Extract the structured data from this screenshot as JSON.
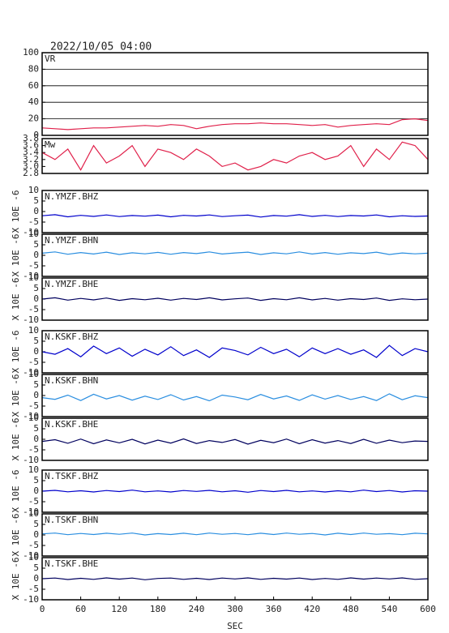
{
  "chart_data": [
    {
      "type": "line",
      "title": "2022/10/05 04:00",
      "label": "VR",
      "color": "#e0204a",
      "grid": true,
      "ylim": [
        0,
        100
      ],
      "yticks": [
        0,
        20,
        40,
        60,
        80,
        100
      ],
      "xlim": [
        0,
        600
      ],
      "x": [
        0,
        20,
        40,
        60,
        80,
        100,
        120,
        140,
        160,
        180,
        200,
        220,
        240,
        260,
        280,
        300,
        320,
        340,
        360,
        380,
        400,
        420,
        440,
        460,
        480,
        500,
        520,
        540,
        560,
        580,
        600
      ],
      "values": [
        9,
        8,
        7,
        8,
        9,
        9,
        10,
        11,
        12,
        11,
        13,
        12,
        8,
        11,
        13,
        14,
        14,
        15,
        14,
        14,
        13,
        12,
        13,
        10,
        12,
        13,
        14,
        13,
        19,
        20,
        18
      ]
    },
    {
      "type": "line",
      "label": "Mw",
      "color": "#e0204a",
      "ylim": [
        2.8,
        3.8
      ],
      "yticks": [
        {
          "value": 2.8,
          "label": "2.8"
        },
        {
          "value": 3,
          "label": "3.0"
        },
        3.2,
        3.4,
        3.6,
        3.8
      ],
      "xlim": [
        0,
        600
      ],
      "x": [
        0,
        20,
        40,
        60,
        80,
        100,
        120,
        140,
        160,
        180,
        200,
        220,
        240,
        260,
        280,
        300,
        320,
        340,
        360,
        380,
        400,
        420,
        440,
        460,
        480,
        500,
        520,
        540,
        560,
        580,
        600
      ],
      "values": [
        3.4,
        3.2,
        3.5,
        2.9,
        3.6,
        3.1,
        3.3,
        3.6,
        3.0,
        3.5,
        3.4,
        3.2,
        3.5,
        3.3,
        3.0,
        3.1,
        2.9,
        3.0,
        3.2,
        3.1,
        3.3,
        3.4,
        3.2,
        3.3,
        3.6,
        3.0,
        3.5,
        3.2,
        3.7,
        3.6,
        3.2
      ]
    },
    {
      "type": "line",
      "label": "N.YMZF.BHZ",
      "ylabel": "X 10E -6",
      "color": "#0000cc",
      "ylim": [
        -10,
        10
      ],
      "yticks": [
        -10,
        -5,
        0,
        5,
        10
      ],
      "xlim": [
        0,
        600
      ],
      "x": [
        0,
        20,
        40,
        60,
        80,
        100,
        120,
        140,
        160,
        180,
        200,
        220,
        240,
        260,
        280,
        300,
        320,
        340,
        360,
        380,
        400,
        420,
        440,
        460,
        480,
        500,
        520,
        540,
        560,
        580,
        600
      ],
      "values": [
        -2,
        -1.5,
        -2.5,
        -1.8,
        -2.3,
        -1.6,
        -2.4,
        -1.9,
        -2.2,
        -1.7,
        -2.5,
        -1.8,
        -2.1,
        -1.6,
        -2.4,
        -2,
        -1.7,
        -2.6,
        -1.9,
        -2.2,
        -1.5,
        -2.3,
        -1.8,
        -2.4,
        -1.9,
        -2.1,
        -1.6,
        -2.5,
        -2,
        -2.3,
        -2.1
      ]
    },
    {
      "type": "line",
      "label": "N.YMZF.BHN",
      "ylabel": "X 10E -6",
      "color": "#2a8ee0",
      "ylim": [
        -10,
        10
      ],
      "yticks": [
        -10,
        -5,
        0,
        5,
        10
      ],
      "xlim": [
        0,
        600
      ],
      "x": [
        0,
        20,
        40,
        60,
        80,
        100,
        120,
        140,
        160,
        180,
        200,
        220,
        240,
        260,
        280,
        300,
        320,
        340,
        360,
        380,
        400,
        420,
        440,
        460,
        480,
        500,
        520,
        540,
        560,
        580,
        600
      ],
      "values": [
        1,
        1.6,
        0.5,
        1.3,
        0.6,
        1.5,
        0.4,
        1.2,
        0.7,
        1.4,
        0.5,
        1.3,
        0.8,
        1.6,
        0.6,
        1.1,
        1.5,
        0.4,
        1.2,
        0.7,
        1.6,
        0.6,
        1.3,
        0.5,
        1.2,
        0.8,
        1.5,
        0.4,
        1.1,
        0.7,
        1
      ]
    },
    {
      "type": "line",
      "label": "N.YMZF.BHE",
      "ylabel": "X 10E -6",
      "color": "#00005e",
      "ylim": [
        -10,
        10
      ],
      "yticks": [
        -10,
        -5,
        0,
        5,
        10
      ],
      "xlim": [
        0,
        600
      ],
      "x": [
        0,
        20,
        40,
        60,
        80,
        100,
        120,
        140,
        160,
        180,
        200,
        220,
        240,
        260,
        280,
        300,
        320,
        340,
        360,
        380,
        400,
        420,
        440,
        460,
        480,
        500,
        520,
        540,
        560,
        580,
        600
      ],
      "values": [
        0,
        0.6,
        -0.5,
        0.3,
        -0.4,
        0.5,
        -0.6,
        0.2,
        -0.3,
        0.4,
        -0.5,
        0.3,
        -0.2,
        0.6,
        -0.4,
        0.1,
        0.5,
        -0.6,
        0.2,
        -0.3,
        0.6,
        -0.4,
        0.3,
        -0.5,
        0.2,
        -0.2,
        0.5,
        -0.6,
        0.1,
        -0.3,
        0
      ]
    },
    {
      "type": "line",
      "label": "N.KSKF.BHZ",
      "ylabel": "X 10E -6",
      "color": "#0000cc",
      "ylim": [
        -10,
        10
      ],
      "yticks": [
        -10,
        -5,
        0,
        5,
        10
      ],
      "xlim": [
        0,
        600
      ],
      "x": [
        0,
        20,
        40,
        60,
        80,
        100,
        120,
        140,
        160,
        180,
        200,
        220,
        240,
        260,
        280,
        300,
        320,
        340,
        360,
        380,
        400,
        420,
        440,
        460,
        480,
        500,
        520,
        540,
        560,
        580,
        600
      ],
      "values": [
        0,
        -1.2,
        1.5,
        -2.4,
        2.7,
        -0.9,
        1.8,
        -2.1,
        1.2,
        -1.5,
        2.4,
        -1.8,
        0.9,
        -2.7,
        1.8,
        0.6,
        -1.5,
        2.1,
        -0.9,
        1.2,
        -2.4,
        1.8,
        -0.9,
        1.5,
        -1.2,
        0.9,
        -2.7,
        3,
        -1.8,
        1.5,
        0
      ]
    },
    {
      "type": "line",
      "label": "N.KSKF.BHN",
      "ylabel": "X 10E -6",
      "color": "#2a8ee0",
      "ylim": [
        -10,
        10
      ],
      "yticks": [
        -10,
        -5,
        0,
        5,
        10
      ],
      "xlim": [
        0,
        600
      ],
      "x": [
        0,
        20,
        40,
        60,
        80,
        100,
        120,
        140,
        160,
        180,
        200,
        220,
        240,
        260,
        280,
        300,
        320,
        340,
        360,
        380,
        400,
        420,
        440,
        460,
        480,
        500,
        520,
        540,
        560,
        580,
        600
      ],
      "values": [
        -1,
        -1.8,
        0.2,
        -2.4,
        0.6,
        -1.6,
        0,
        -2.2,
        -0.3,
        -1.9,
        0.4,
        -2.1,
        -0.5,
        -2.5,
        0.2,
        -0.7,
        -2,
        0.5,
        -1.6,
        -0.2,
        -2.3,
        0.3,
        -1.7,
        0,
        -1.9,
        -0.5,
        -2.4,
        0.8,
        -2,
        -0.1,
        -1
      ]
    },
    {
      "type": "line",
      "label": "N.KSKF.BHE",
      "ylabel": "X 10E -6",
      "color": "#00005e",
      "ylim": [
        -10,
        10
      ],
      "yticks": [
        -10,
        -5,
        0,
        5,
        10
      ],
      "xlim": [
        0,
        600
      ],
      "x": [
        0,
        20,
        40,
        60,
        80,
        100,
        120,
        140,
        160,
        180,
        200,
        220,
        240,
        260,
        280,
        300,
        320,
        340,
        360,
        380,
        400,
        420,
        440,
        460,
        480,
        500,
        520,
        540,
        560,
        580,
        600
      ],
      "values": [
        -1,
        -0.2,
        -1.9,
        0.1,
        -2.1,
        -0.3,
        -1.7,
        0,
        -2.2,
        -0.4,
        -1.8,
        0.2,
        -2,
        -0.6,
        -1.5,
        -0.1,
        -2.3,
        -0.5,
        -1.6,
        0.1,
        -2.1,
        -0.2,
        -1.8,
        -0.6,
        -2,
        0,
        -1.9,
        -0.4,
        -1.6,
        -0.8,
        -1
      ]
    },
    {
      "type": "line",
      "label": "N.TSKF.BHZ",
      "ylabel": "X 10E -6",
      "color": "#0000cc",
      "ylim": [
        -10,
        10
      ],
      "yticks": [
        -10,
        -5,
        0,
        5,
        10
      ],
      "xlim": [
        0,
        600
      ],
      "x": [
        0,
        20,
        40,
        60,
        80,
        100,
        120,
        140,
        160,
        180,
        200,
        220,
        240,
        260,
        280,
        300,
        320,
        340,
        360,
        380,
        400,
        420,
        440,
        460,
        480,
        500,
        520,
        540,
        560,
        580,
        600
      ],
      "values": [
        0,
        0.4,
        -0.3,
        0.2,
        -0.4,
        0.3,
        -0.2,
        0.5,
        -0.3,
        0.1,
        -0.4,
        0.3,
        -0.1,
        0.4,
        -0.3,
        0.2,
        -0.5,
        0.3,
        -0.2,
        0.4,
        -0.3,
        0.1,
        -0.4,
        0.2,
        -0.3,
        0.5,
        -0.2,
        0.3,
        -0.4,
        0.2,
        0
      ]
    },
    {
      "type": "line",
      "label": "N.TSKF.BHN",
      "ylabel": "X 10E -6",
      "color": "#2a8ee0",
      "ylim": [
        -10,
        10
      ],
      "yticks": [
        -10,
        -5,
        0,
        5,
        10
      ],
      "xlim": [
        0,
        600
      ],
      "x": [
        0,
        20,
        40,
        60,
        80,
        100,
        120,
        140,
        160,
        180,
        200,
        220,
        240,
        260,
        280,
        300,
        320,
        340,
        360,
        380,
        400,
        420,
        440,
        460,
        480,
        500,
        520,
        540,
        560,
        580,
        600
      ],
      "values": [
        0.5,
        0.9,
        0.1,
        0.7,
        0.2,
        0.8,
        0.3,
        0.9,
        0,
        0.6,
        0.2,
        0.8,
        0.1,
        0.9,
        0.3,
        0.7,
        0.1,
        0.8,
        0.2,
        0.9,
        0.3,
        0.7,
        0,
        0.8,
        0.2,
        0.9,
        0.3,
        0.6,
        0.1,
        0.8,
        0.5
      ]
    },
    {
      "type": "line",
      "label": "N.TSKF.BHE",
      "ylabel": "X 10E -6",
      "xlabel": "SEC",
      "color": "#00005e",
      "ylim": [
        -10,
        10
      ],
      "yticks": [
        -10,
        -5,
        0,
        5,
        10
      ],
      "xlim": [
        0,
        600
      ],
      "xticks": [
        0,
        60,
        120,
        180,
        240,
        300,
        360,
        420,
        480,
        540,
        600
      ],
      "x": [
        0,
        20,
        40,
        60,
        80,
        100,
        120,
        140,
        160,
        180,
        200,
        220,
        240,
        260,
        280,
        300,
        320,
        340,
        360,
        380,
        400,
        420,
        440,
        460,
        480,
        500,
        520,
        540,
        560,
        580,
        600
      ],
      "values": [
        0,
        0.3,
        -0.4,
        0.2,
        -0.3,
        0.4,
        -0.2,
        0.3,
        -0.5,
        0.1,
        0.3,
        -0.3,
        0.2,
        -0.4,
        0.3,
        -0.1,
        0.4,
        -0.3,
        0.2,
        -0.2,
        0.3,
        -0.4,
        0.1,
        -0.3,
        0.4,
        -0.2,
        0.3,
        -0.1,
        0.4,
        -0.3,
        0
      ]
    }
  ]
}
